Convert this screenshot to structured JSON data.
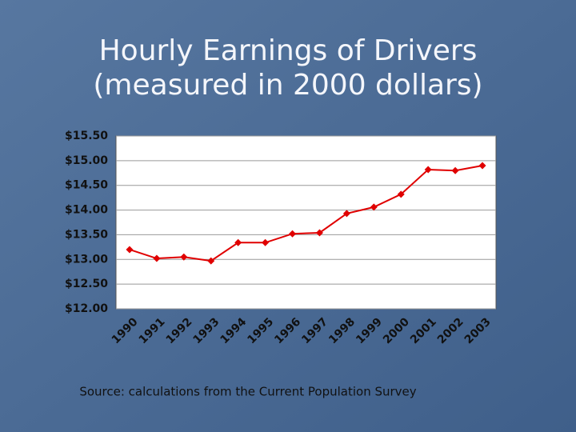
{
  "chart_data": {
    "type": "line",
    "title": [
      "Hourly Earnings of Drivers",
      "(measured in 2000 dollars)"
    ],
    "categories": [
      "1990",
      "1991",
      "1992",
      "1993",
      "1994",
      "1995",
      "1996",
      "1997",
      "1998",
      "1999",
      "2000",
      "2001",
      "2002",
      "2003"
    ],
    "series": [
      {
        "color": "#e00000",
        "values": [
          13.2,
          13.02,
          13.05,
          12.97,
          13.34,
          13.34,
          13.52,
          13.54,
          13.93,
          14.06,
          14.32,
          14.82,
          14.8,
          14.9
        ]
      }
    ],
    "ylim": [
      12,
      15.5
    ],
    "yticks": [
      {
        "value": 12,
        "label": "$12.00"
      },
      {
        "value": 12.5,
        "label": "$12.50"
      },
      {
        "value": 13,
        "label": "$13.00"
      },
      {
        "value": 13.5,
        "label": "$13.50"
      },
      {
        "value": 14,
        "label": "$14.00"
      },
      {
        "value": 14.5,
        "label": "$14.50"
      },
      {
        "value": 15,
        "label": "$15.00"
      },
      {
        "value": 15.5,
        "label": "$15.50"
      }
    ],
    "grid": true,
    "source": "Source: calculations from the Current Population Survey"
  }
}
